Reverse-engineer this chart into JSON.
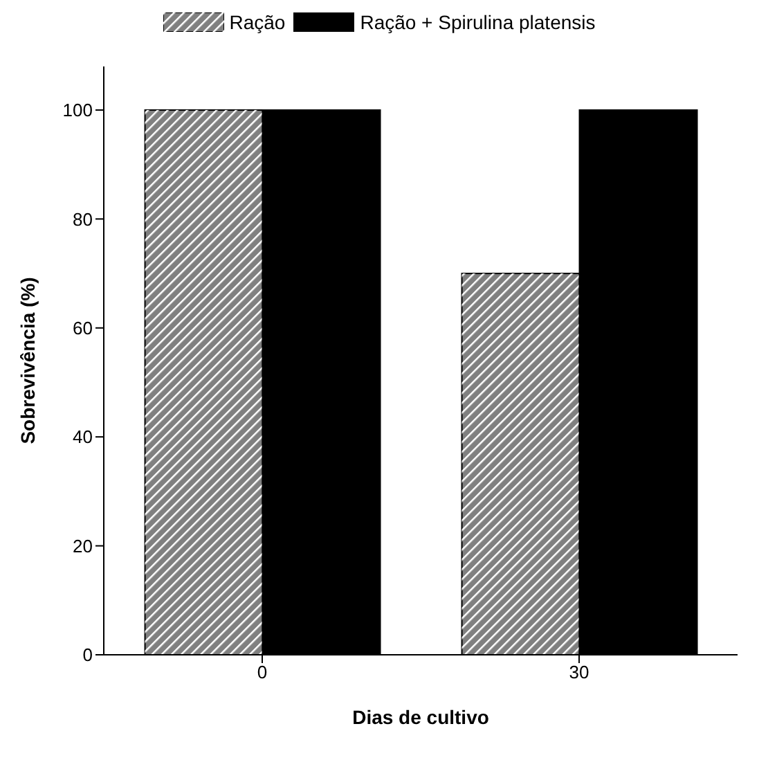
{
  "chart_data": {
    "type": "bar",
    "xlabel": "Dias de cultivo",
    "ylabel": "Sobrevivência (%)",
    "categories": [
      "0",
      "30"
    ],
    "series": [
      {
        "name": "Ração",
        "color": "#808080",
        "values": [
          100,
          70
        ]
      },
      {
        "name": "Ração + Spirulina platensis",
        "color": "#000000",
        "values": [
          100,
          100
        ]
      }
    ],
    "ylim": [
      0,
      108
    ],
    "yticks": [
      0,
      20,
      40,
      60,
      80,
      100
    ],
    "legend": "top",
    "grid": false
  }
}
